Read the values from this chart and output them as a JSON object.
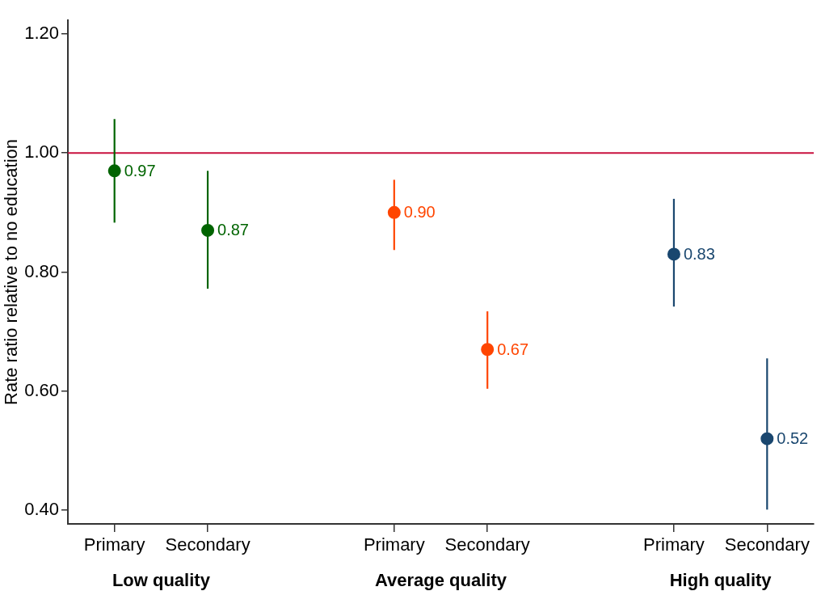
{
  "chart_data": {
    "type": "scatter",
    "ylabel": "Rate ratio relative to no education",
    "categories": [
      "Primary",
      "Secondary",
      null,
      "Primary",
      "Secondary",
      null,
      "Primary",
      "Secondary"
    ],
    "series": [
      {
        "color": "#006400",
        "values": [
          0.97,
          0.87,
          null,
          null,
          null,
          null,
          null,
          null
        ],
        "errors": [
          [
            0.883,
            1.057
          ],
          [
            0.772,
            0.97
          ],
          null,
          null,
          null,
          null,
          null,
          null
        ],
        "value_labels": [
          "0.97",
          "0.87",
          null,
          null,
          null,
          null,
          null,
          null
        ]
      },
      {
        "color": "#ff4500",
        "values": [
          null,
          null,
          null,
          0.9,
          0.67,
          null,
          null,
          null
        ],
        "errors": [
          null,
          null,
          null,
          [
            0.837,
            0.955
          ],
          [
            0.604,
            0.734
          ],
          null,
          null,
          null
        ],
        "value_labels": [
          null,
          null,
          null,
          "0.90",
          "0.67",
          null,
          null,
          null
        ]
      },
      {
        "color": "#1a476f",
        "values": [
          null,
          null,
          null,
          null,
          null,
          null,
          0.83,
          0.52
        ],
        "errors": [
          null,
          null,
          null,
          null,
          null,
          null,
          [
            0.742,
            0.923
          ],
          [
            0.401,
            0.655
          ]
        ],
        "value_labels": [
          null,
          null,
          null,
          null,
          null,
          null,
          "0.83",
          "0.52"
        ]
      }
    ],
    "ylim": [
      0.377,
      1.223
    ],
    "yticks": [
      {
        "value": 0.4,
        "label": "0.40"
      },
      {
        "value": 0.6,
        "label": "0.60"
      },
      {
        "value": 0.8,
        "label": "0.80"
      },
      {
        "value": 1.0,
        "label": "1.00"
      },
      {
        "value": 1.2,
        "label": "1.20"
      }
    ],
    "ref_lines": [
      {
        "axis": "y",
        "value": 1.0,
        "color": "#c8103e"
      }
    ],
    "annotations": [
      "Low quality",
      "Average quality",
      "High quality"
    ],
    "marker": "circle",
    "grid": false,
    "legend": false
  }
}
